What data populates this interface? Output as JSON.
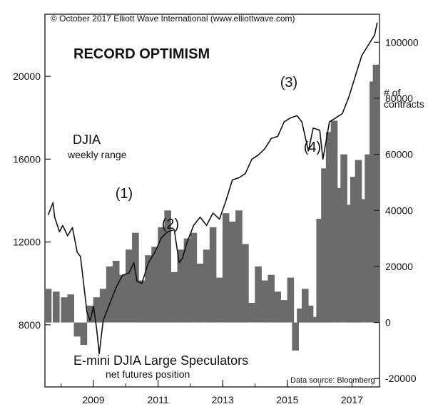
{
  "chart_data": [
    {
      "type": "line",
      "title": "RECORD OPTIMISM",
      "copyright": "© October 2017 Elliott Wave International (www.elliottwave.com)",
      "label": "DJIA",
      "sublabel": "weekly range",
      "y_axis_side": "left",
      "ylim": [
        5000,
        23000
      ],
      "yticks": [
        8000,
        12000,
        16000,
        20000
      ],
      "ytick_labels": [
        "8000",
        "12000",
        "16000",
        "20000"
      ],
      "xlim": [
        2007.5,
        2017.85
      ],
      "x": [
        2007.6,
        2007.75,
        2007.8,
        2007.95,
        2008.05,
        2008.2,
        2008.35,
        2008.5,
        2008.6,
        2008.75,
        2008.8,
        2008.9,
        2009.0,
        2009.1,
        2009.18,
        2009.3,
        2009.5,
        2009.7,
        2009.9,
        2010.1,
        2010.25,
        2010.35,
        2010.5,
        2010.7,
        2010.9,
        2011.1,
        2011.3,
        2011.5,
        2011.65,
        2011.75,
        2011.9,
        2012.1,
        2012.3,
        2012.5,
        2012.7,
        2012.9,
        2013.1,
        2013.3,
        2013.5,
        2013.7,
        2013.9,
        2014.1,
        2014.3,
        2014.5,
        2014.7,
        2014.9,
        2015.1,
        2015.3,
        2015.45,
        2015.65,
        2015.8,
        2016.0,
        2016.1,
        2016.3,
        2016.5,
        2016.7,
        2016.9,
        2017.1,
        2017.3,
        2017.5,
        2017.7,
        2017.78
      ],
      "values": [
        13300,
        13900,
        13200,
        12500,
        12800,
        12300,
        12700,
        11500,
        11300,
        9300,
        8600,
        8200,
        8900,
        7800,
        6600,
        8200,
        9000,
        9800,
        10400,
        10500,
        11000,
        10100,
        10000,
        11000,
        11500,
        12200,
        12500,
        12600,
        11000,
        11200,
        12000,
        12800,
        13200,
        12800,
        13400,
        13100,
        14000,
        15000,
        15100,
        15300,
        16000,
        16200,
        16500,
        17000,
        17100,
        17800,
        18000,
        18100,
        17800,
        16400,
        17500,
        17400,
        16000,
        17800,
        18000,
        18200,
        19000,
        20000,
        21000,
        21500,
        22000,
        22600
      ],
      "annotations": [
        {
          "label": "(1)",
          "x": 2010.2,
          "y": 11000
        },
        {
          "label": "(2)",
          "x": 2011.75,
          "y": 11000
        },
        {
          "label": "(3)",
          "x": 2015.35,
          "y": 18300
        },
        {
          "label": "(4)",
          "x": 2016.1,
          "y": 16000
        }
      ]
    },
    {
      "type": "bar",
      "label": "E-mini DJIA Large Speculators",
      "sublabel": "net futures position",
      "unit_label": "# of\ncontracts",
      "source": "Data source: Bloomberg",
      "y_axis_side": "right",
      "ylim": [
        -23000,
        110000
      ],
      "yticks": [
        -20000,
        0,
        20000,
        40000,
        60000,
        80000,
        100000
      ],
      "ytick_labels": [
        "-20000",
        "0",
        "20000",
        "40000",
        "60000",
        "80000",
        "100000"
      ],
      "xticks": [
        2009,
        2011,
        2013,
        2015,
        2017
      ],
      "xtick_labels": [
        "2009",
        "2011",
        "2013",
        "2015",
        "2017"
      ],
      "x": [
        2007.6,
        2007.85,
        2008.1,
        2008.3,
        2008.5,
        2008.7,
        2008.9,
        2009.1,
        2009.3,
        2009.5,
        2009.7,
        2009.9,
        2010.1,
        2010.3,
        2010.5,
        2010.7,
        2010.9,
        2011.1,
        2011.3,
        2011.5,
        2011.7,
        2011.9,
        2012.1,
        2012.3,
        2012.5,
        2012.7,
        2012.9,
        2013.1,
        2013.3,
        2013.5,
        2013.7,
        2013.9,
        2014.1,
        2014.3,
        2014.5,
        2014.7,
        2014.9,
        2015.1,
        2015.25,
        2015.4,
        2015.55,
        2015.7,
        2015.85,
        2016.0,
        2016.15,
        2016.3,
        2016.45,
        2016.6,
        2016.75,
        2016.9,
        2017.05,
        2017.2,
        2017.35,
        2017.5,
        2017.65,
        2017.75
      ],
      "values": [
        12000,
        11000,
        9000,
        10000,
        -5000,
        -8000,
        6000,
        9000,
        12000,
        20000,
        22000,
        17000,
        26000,
        32000,
        15000,
        24000,
        27000,
        34000,
        40000,
        18000,
        26000,
        30000,
        32000,
        21000,
        26000,
        34000,
        16000,
        39000,
        36000,
        40000,
        28000,
        7000,
        20000,
        15000,
        17000,
        11000,
        8000,
        16000,
        -10000,
        5000,
        12000,
        6000,
        2000,
        37000,
        55000,
        68000,
        72000,
        48000,
        60000,
        42000,
        52000,
        58000,
        44000,
        60000,
        86000,
        92000
      ]
    }
  ]
}
